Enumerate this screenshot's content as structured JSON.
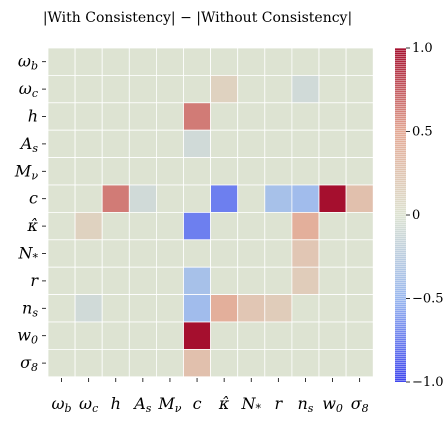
{
  "chart_data": {
    "type": "heatmap",
    "title": "|With Consistency| − |Without Consistency|",
    "row_labels": [
      "ωb",
      "ωc",
      "h",
      "As",
      "Mν",
      "c",
      "κ̂",
      "N*",
      "r",
      "ns",
      "w0",
      "σ8"
    ],
    "col_labels": [
      "ωb",
      "ωc",
      "h",
      "As",
      "Mν",
      "c",
      "κ̂",
      "N*",
      "r",
      "ns",
      "w0",
      "σ8"
    ],
    "values": [
      [
        0,
        0,
        0,
        0,
        0,
        0,
        0,
        0,
        0,
        0,
        0,
        0
      ],
      [
        0,
        0,
        0,
        0,
        0,
        0,
        0.15,
        0,
        0,
        -0.1,
        0,
        0
      ],
      [
        0,
        0,
        0,
        0,
        0,
        0.65,
        0,
        0,
        0,
        0,
        0,
        0
      ],
      [
        0,
        0,
        0,
        0,
        0,
        -0.1,
        0,
        0,
        0,
        0,
        0,
        0
      ],
      [
        0,
        0,
        0,
        0,
        0,
        0,
        0,
        0,
        0,
        0,
        0,
        0
      ],
      [
        0,
        0,
        0.65,
        -0.1,
        0,
        0,
        -0.75,
        0,
        -0.4,
        -0.45,
        1.0,
        0.3
      ],
      [
        0,
        0.15,
        0,
        0,
        0,
        -0.75,
        0,
        0,
        0,
        0.45,
        0,
        0
      ],
      [
        0,
        0,
        0,
        0,
        0,
        0,
        0,
        0,
        0,
        0.25,
        0,
        0
      ],
      [
        0,
        0,
        0,
        0,
        0,
        -0.4,
        0,
        0,
        0,
        0.2,
        0,
        0
      ],
      [
        0,
        -0.1,
        0,
        0,
        0,
        -0.45,
        0.45,
        0.25,
        0.2,
        0,
        0,
        0
      ],
      [
        0,
        0,
        0,
        0,
        0,
        1.0,
        0,
        0,
        0,
        0,
        0,
        0
      ],
      [
        0,
        0,
        0,
        0,
        0,
        0.3,
        0,
        0,
        0,
        0,
        0,
        0
      ]
    ],
    "vmin": -1.0,
    "vmax": 1.0,
    "colorbar_ticks": [
      "1.0",
      "0.5",
      "0",
      "−0.5",
      "−1.0"
    ],
    "colormap": "coolwarm-like (blue to beige to red)"
  }
}
